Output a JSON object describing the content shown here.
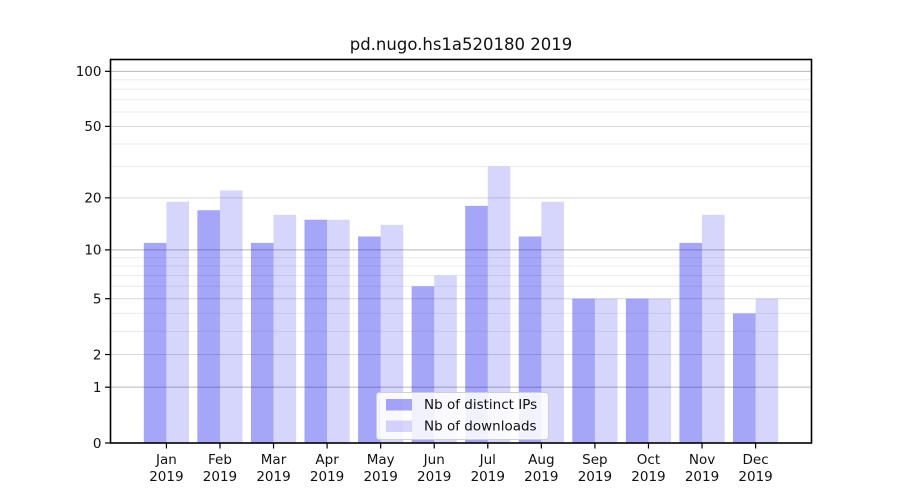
{
  "chart_data": {
    "type": "bar",
    "title": "pd.nugo.hs1a520180 2019",
    "categories": [
      "Jan",
      "Feb",
      "Mar",
      "Apr",
      "May",
      "Jun",
      "Jul",
      "Aug",
      "Sep",
      "Oct",
      "Nov",
      "Dec"
    ],
    "year_label": "2019",
    "series": [
      {
        "name": "Nb of distinct IPs",
        "color": "rgba(0,0,238,0.35)",
        "legend_swatch_hex": "#a6a6f4",
        "values": [
          11,
          17,
          11,
          15,
          12,
          6,
          18,
          12,
          5,
          5,
          11,
          4
        ]
      },
      {
        "name": "Nb of downloads",
        "color": "rgba(0,0,238,0.16)",
        "legend_swatch_hex": "#d9d9fb",
        "values": [
          19,
          22,
          16,
          15,
          14,
          7,
          30,
          19,
          5,
          5,
          16,
          5
        ]
      }
    ],
    "xlabel": "",
    "ylabel": "",
    "yscale": "log1p",
    "y_ticks": [
      0,
      1,
      2,
      5,
      10,
      20,
      50,
      100
    ],
    "ylim": [
      0,
      116
    ],
    "grid": "horizontal, major and faint minor lines",
    "legend_position": "lower center",
    "colors": {
      "axis": "#000000",
      "text": "#111111",
      "grid_major": "#b7b7b7",
      "grid_mid": "#d9d9d9",
      "grid_minor": "#ececec",
      "legend_bg": "rgba(255,255,255,0.85)",
      "legend_border": "#cfcfcf"
    }
  }
}
